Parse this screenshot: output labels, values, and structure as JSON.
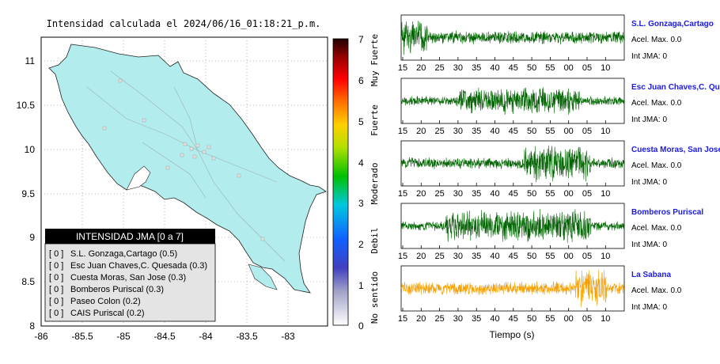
{
  "map": {
    "title": "Intensidad calculada el 2024/06/16_01:18:21_p.m.",
    "x_ticks": [
      "-86",
      "-85.5",
      "-85",
      "-84.5",
      "-84",
      "-83.5",
      "-83"
    ],
    "y_ticks": [
      "11",
      "10.5",
      "10",
      "9.5",
      "9",
      "8.5",
      "8"
    ],
    "land_color": "#b2ecec",
    "legend": {
      "title": "INTENSIDAD JMA [0 a 7]",
      "items": [
        {
          "bracket": "[ 0 ]",
          "name": "S.L. Gonzaga,Cartago (0.5)"
        },
        {
          "bracket": "[ 0 ]",
          "name": "Esc Juan Chaves,C. Quesada (0.3)"
        },
        {
          "bracket": "[ 0 ]",
          "name": "Cuesta Moras, San Jose (0.3)"
        },
        {
          "bracket": "[ 0 ]",
          "name": "Bomberos Puriscal (0.3)"
        },
        {
          "bracket": "[ 0 ]",
          "name": "Paseo Colon (0.2)"
        },
        {
          "bracket": "[ 0 ]",
          "name": "CAIS Puriscal (0.2)"
        }
      ]
    }
  },
  "colorbar": {
    "ticks": [
      "7",
      "6",
      "5",
      "4",
      "3",
      "2",
      "1",
      "0"
    ],
    "labels": [
      "Muy Fuerte",
      "Fuerte",
      "Moderado",
      "Debil",
      "No sentido"
    ]
  },
  "chart_data": [
    {
      "type": "line",
      "title": "Intensidad calculada el 2024/06/16_01:18:21_p.m.",
      "description_of_series": "seismograms",
      "x_tick_labels": [
        "15",
        "20",
        "25",
        "30",
        "35",
        "40",
        "45",
        "50",
        "55",
        "00",
        "05",
        "10"
      ],
      "xlabel": "Tiempo (s)",
      "series": [
        {
          "name": "S.L. Gonzaga,Cartago",
          "accel_label": "Acel. Max. 0.0",
          "int_label": "Int JMA: 0",
          "color": "#006400"
        },
        {
          "name": "Esc Juan Chaves,C. Qu",
          "accel_label": "Acel. Max. 0.0",
          "int_label": "Int JMA: 0",
          "color": "#006400"
        },
        {
          "name": "Cuesta Moras, San Jose",
          "accel_label": "Acel. Max. 0.0",
          "int_label": "Int JMA: 0",
          "color": "#006400"
        },
        {
          "name": "Bomberos Puriscal",
          "accel_label": "Acel. Max. 0.0",
          "int_label": "Int JMA: 0",
          "color": "#006400"
        },
        {
          "name": "La Sabana",
          "accel_label": "Acel. Max. 0.0",
          "int_label": "Int JMA: 0",
          "color": "#f5a000"
        }
      ]
    }
  ]
}
